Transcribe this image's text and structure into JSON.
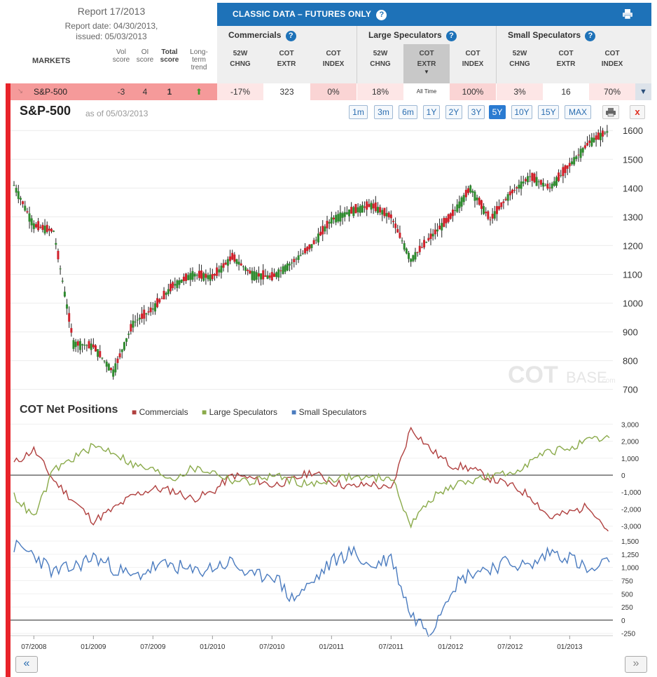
{
  "report": {
    "title": "Report 17/2013",
    "report_date": "Report date: 04/30/2013,",
    "issued": "issued: 05/03/2013"
  },
  "markets_header": {
    "markets": "MARKETS",
    "vol": "Vol",
    "vol2": "score",
    "oi": "OI",
    "oi2": "score",
    "total": "Total",
    "total2": "score",
    "trend": "Long-",
    "trend2": "term",
    "trend3": "trend"
  },
  "classic": {
    "title": "CLASSIC DATA – FUTURES ONLY",
    "help": "?"
  },
  "groups": [
    {
      "label": "Commercials",
      "cols": [
        [
          "52W",
          "CHNG"
        ],
        [
          "COT",
          "EXTR"
        ],
        [
          "COT",
          "INDEX"
        ]
      ]
    },
    {
      "label": "Large Speculators",
      "cols": [
        [
          "52W",
          "CHNG"
        ],
        [
          "COT",
          "EXTR"
        ],
        [
          "COT",
          "INDEX"
        ]
      ]
    },
    {
      "label": "Small Speculators",
      "cols": [
        [
          "52W",
          "CHNG"
        ],
        [
          "COT",
          "EXTR"
        ],
        [
          "COT",
          "INDEX"
        ]
      ]
    }
  ],
  "extr_selected_label": "All Time",
  "row": {
    "market": "S&P-500",
    "vol": "-3",
    "oi": "4",
    "total": "1",
    "values": [
      "-17%",
      "323",
      "0%",
      "18%",
      "",
      "100%",
      "3%",
      "16",
      "70%"
    ]
  },
  "chart": {
    "title": "S&P-500",
    "asof": "as of 05/03/2013",
    "ranges": [
      "1m",
      "3m",
      "6m",
      "1Y",
      "2Y",
      "3Y",
      "5Y",
      "10Y",
      "15Y",
      "MAX"
    ],
    "active_range": "5Y",
    "close": "x",
    "watermark_a": "COT",
    "watermark_b": "BASE",
    "watermark_c": ".com"
  },
  "price_axis": [
    "1600",
    "1500",
    "1400",
    "1300",
    "1200",
    "1100",
    "1000",
    "900",
    "800",
    "700"
  ],
  "cot": {
    "title": "COT Net Positions",
    "legend": [
      "Commercials",
      "Large Speculators",
      "Small Speculators"
    ]
  },
  "colors": {
    "commercials": "#b0403f",
    "large": "#8aaa4a",
    "small": "#4a7bbf",
    "up": "#2f8b2f",
    "down": "#d0202a",
    "accent": "#1e72b8"
  },
  "net_axis": [
    "3,000",
    "2,000",
    "1,000",
    "0",
    "-1,000",
    "-2,000",
    "-3,000"
  ],
  "small_axis": [
    "1,500",
    "1,250",
    "1,000",
    "750",
    "500",
    "250",
    "0",
    "-250"
  ],
  "x_axis": [
    "07/2008",
    "01/2009",
    "07/2009",
    "01/2010",
    "07/2010",
    "01/2011",
    "07/2011",
    "01/2012",
    "07/2012",
    "01/2013"
  ],
  "nav": {
    "prev": "«",
    "next": "»"
  },
  "chart_data": [
    {
      "type": "candlestick",
      "title": "S&P-500",
      "y_ticks": [
        700,
        800,
        900,
        1000,
        1100,
        1200,
        1300,
        1400,
        1500,
        1600
      ],
      "ylim": [
        670,
        1620
      ],
      "x": [
        "05/2008",
        "07/2008",
        "09/2008",
        "11/2008",
        "01/2009",
        "03/2009",
        "05/2009",
        "07/2009",
        "09/2009",
        "11/2009",
        "01/2010",
        "03/2010",
        "05/2010",
        "07/2010",
        "09/2010",
        "11/2010",
        "01/2011",
        "03/2011",
        "05/2011",
        "07/2011",
        "09/2011",
        "11/2011",
        "01/2012",
        "03/2012",
        "05/2012",
        "07/2012",
        "09/2012",
        "11/2012",
        "01/2013",
        "03/2013",
        "05/2013"
      ],
      "close": [
        1410,
        1270,
        1250,
        860,
        850,
        760,
        930,
        980,
        1060,
        1100,
        1090,
        1160,
        1100,
        1090,
        1140,
        1200,
        1290,
        1320,
        1340,
        1300,
        1150,
        1230,
        1300,
        1400,
        1290,
        1380,
        1440,
        1400,
        1480,
        1560,
        1600
      ]
    },
    {
      "type": "line",
      "title": "COT Net Positions",
      "y_ticks": [
        -3000,
        -2000,
        -1000,
        0,
        1000,
        2000,
        3000
      ],
      "ylim": [
        -3300,
        3300
      ],
      "x": [
        "05/2008",
        "07/2008",
        "09/2008",
        "11/2008",
        "01/2009",
        "03/2009",
        "05/2009",
        "07/2009",
        "09/2009",
        "11/2009",
        "01/2010",
        "03/2010",
        "05/2010",
        "07/2010",
        "09/2010",
        "11/2010",
        "01/2011",
        "03/2011",
        "05/2011",
        "07/2011",
        "09/2011",
        "11/2011",
        "01/2012",
        "03/2012",
        "05/2012",
        "07/2012",
        "09/2012",
        "11/2012",
        "01/2013",
        "03/2013",
        "05/2013"
      ],
      "series": [
        {
          "name": "Commercials",
          "values": [
            700,
            1500,
            -300,
            -1500,
            -2700,
            -2000,
            -1200,
            -800,
            -900,
            -1400,
            -1000,
            0,
            -200,
            -600,
            -300,
            200,
            -400,
            -700,
            -500,
            -900,
            2800,
            1500,
            600,
            400,
            -200,
            -600,
            -1200,
            -2500,
            -2200,
            -1800,
            -3400
          ]
        },
        {
          "name": "Large Speculators",
          "values": [
            -1200,
            -2500,
            300,
            1000,
            1700,
            1400,
            600,
            300,
            -200,
            400,
            200,
            -300,
            -400,
            0,
            -300,
            -600,
            -200,
            -100,
            -200,
            -100,
            -2900,
            -1400,
            -700,
            -300,
            -100,
            100,
            800,
            1400,
            1600,
            2000,
            2200
          ]
        }
      ]
    },
    {
      "type": "line",
      "title": "",
      "y_ticks": [
        -250,
        0,
        250,
        500,
        750,
        1000,
        1250,
        1500
      ],
      "ylim": [
        -280,
        1580
      ],
      "x": [
        "05/2008",
        "07/2008",
        "09/2008",
        "11/2008",
        "01/2009",
        "03/2009",
        "05/2009",
        "07/2009",
        "09/2009",
        "11/2009",
        "01/2010",
        "03/2010",
        "05/2010",
        "07/2010",
        "09/2010",
        "11/2010",
        "01/2011",
        "03/2011",
        "05/2011",
        "07/2011",
        "09/2011",
        "11/2011",
        "01/2012",
        "03/2012",
        "05/2012",
        "07/2012",
        "09/2012",
        "11/2012",
        "01/2013",
        "03/2013",
        "05/2013"
      ],
      "series": [
        {
          "name": "Small Speculators",
          "values": [
            1400,
            1250,
            900,
            1000,
            1200,
            1000,
            800,
            1000,
            1050,
            900,
            1000,
            1100,
            800,
            900,
            400,
            700,
            1100,
            1300,
            1000,
            1200,
            100,
            -200,
            600,
            900,
            1000,
            1100,
            1000,
            1300,
            1200,
            900,
            1100
          ]
        }
      ]
    }
  ]
}
